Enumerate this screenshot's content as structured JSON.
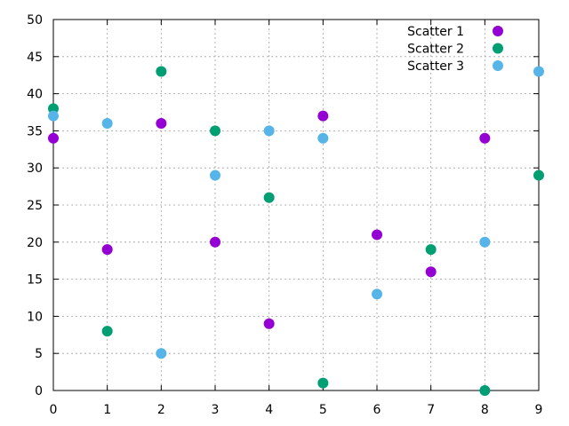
{
  "chart_data": {
    "type": "scatter",
    "title": "",
    "xlabel": "",
    "ylabel": "",
    "xlim": [
      0,
      9
    ],
    "ylim": [
      0,
      50
    ],
    "x_ticks": [
      0,
      1,
      2,
      3,
      4,
      5,
      6,
      7,
      8,
      9
    ],
    "y_ticks": [
      0,
      5,
      10,
      15,
      20,
      25,
      30,
      35,
      40,
      45,
      50
    ],
    "grid": true,
    "legend_position": "top-right",
    "series": [
      {
        "name": "Scatter 1",
        "color": "#9400d3",
        "x": [
          0,
          1,
          2,
          3,
          4,
          5,
          6,
          7,
          8
        ],
        "y": [
          34,
          19,
          36,
          20,
          9,
          37,
          21,
          16,
          34
        ]
      },
      {
        "name": "Scatter 2",
        "color": "#009e73",
        "x": [
          0,
          1,
          2,
          3,
          4,
          5,
          7,
          8,
          9
        ],
        "y": [
          38,
          8,
          43,
          35,
          26,
          1,
          19,
          0,
          29
        ]
      },
      {
        "name": "Scatter 3",
        "color": "#56b4e9",
        "x": [
          0,
          1,
          2,
          3,
          4,
          5,
          6,
          8,
          9
        ],
        "y": [
          37,
          36,
          5,
          29,
          35,
          34,
          13,
          20,
          43
        ]
      }
    ]
  }
}
